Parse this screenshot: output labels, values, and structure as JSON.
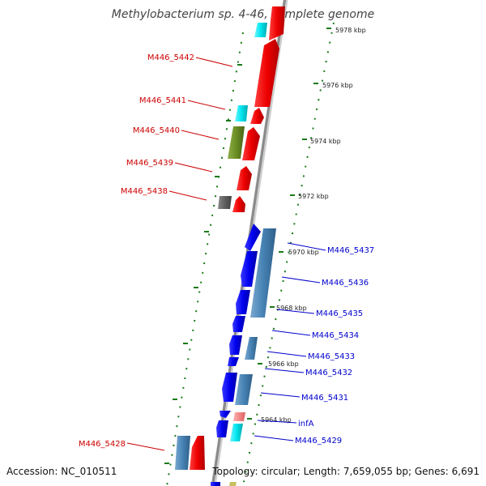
{
  "title": "Methylobacterium sp. 4-46, complete genome",
  "footer": {
    "accession": "Accession: NC_010511",
    "topology": "Topology: circular; Length: 7,659,055 bp; Genes: 6,691"
  },
  "kbp_labels": [
    "5978 kbp",
    "5976 kbp",
    "5974 kbp",
    "5972 kbp",
    "5970 kbp",
    "5968 kbp",
    "5966 kbp",
    "5964 kbp"
  ],
  "left_genes": [
    "M446_5442",
    "M446_5441",
    "M446_5440",
    "M446_5439",
    "M446_5438",
    "M446_5428"
  ],
  "right_genes": [
    "M446_5437",
    "M446_5436",
    "M446_5435",
    "M446_5434",
    "M446_5433",
    "M446_5432",
    "M446_5431",
    "infA",
    "M446_5429"
  ],
  "colors": {
    "red_gene": "#ee0000",
    "cyan_gene": "#00e5ee",
    "olive_gene": "#6b8e23",
    "gray_gene": "#606060",
    "blue_gene": "#0000ee",
    "steel_gene": "#4682b4",
    "pink_gene": "#f08080",
    "tick_green": "#1a7a1a",
    "backbone": "#8a8a8a"
  }
}
